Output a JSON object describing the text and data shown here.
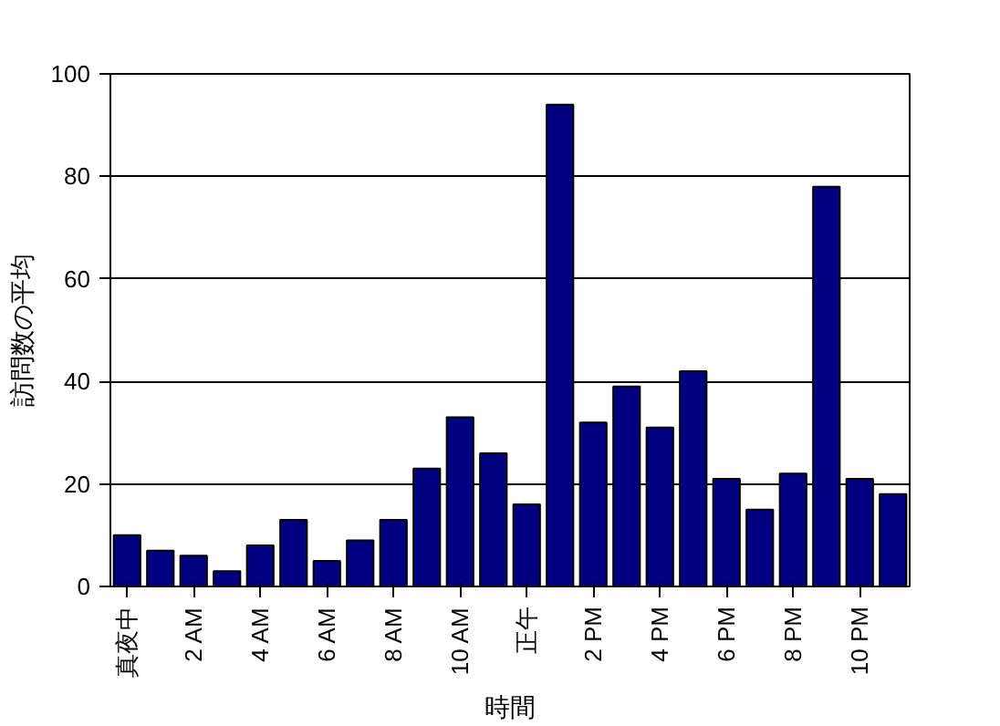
{
  "chart_data": {
    "type": "bar",
    "xlabel": "時間",
    "ylabel": "訪問数の平均",
    "categories": [
      "真夜中",
      null,
      "2 AM",
      null,
      "4 AM",
      null,
      "6 AM",
      null,
      "8 AM",
      null,
      "10 AM",
      null,
      "正午",
      null,
      "2 PM",
      null,
      "4 PM",
      null,
      "6 PM",
      null,
      "8 PM",
      null,
      "10 PM",
      null
    ],
    "values": [
      10,
      7,
      6,
      3,
      8,
      13,
      5,
      9,
      13,
      23,
      33,
      26,
      16,
      94,
      32,
      39,
      31,
      42,
      21,
      15,
      22,
      78,
      21,
      18
    ],
    "color": "#000080",
    "ylim": [
      0,
      100
    ],
    "yticks": [
      0,
      20,
      40,
      60,
      80,
      100
    ],
    "grid": "y"
  }
}
